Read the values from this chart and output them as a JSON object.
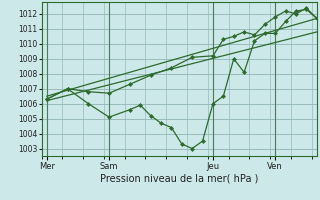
{
  "xlabel": "Pression niveau de la mer( hPa )",
  "bg_color": "#cce8e8",
  "grid_color": "#99bbbb",
  "line_color": "#2d6a2d",
  "vline_color": "#4a7a5a",
  "ylim": [
    1002.5,
    1012.8
  ],
  "yticks": [
    1003,
    1004,
    1005,
    1006,
    1007,
    1008,
    1009,
    1010,
    1011,
    1012
  ],
  "xtick_labels": [
    "Mer",
    "Sam",
    "Jeu",
    "Ven"
  ],
  "xtick_positions": [
    0,
    24,
    64,
    88
  ],
  "xlim": [
    -2,
    104
  ],
  "series1_upper": {
    "x": [
      0,
      8,
      16,
      24,
      32,
      40,
      48,
      56,
      64,
      68,
      72,
      76,
      80,
      84,
      88,
      92,
      96,
      100,
      104
    ],
    "y": [
      1006.3,
      1007.0,
      1006.8,
      1006.7,
      1007.3,
      1007.9,
      1008.4,
      1009.1,
      1009.2,
      1010.3,
      1010.5,
      1010.8,
      1010.6,
      1011.3,
      1011.8,
      1012.2,
      1012.0,
      1012.4,
      1011.7
    ]
  },
  "series2_dip": {
    "x": [
      0,
      8,
      16,
      24,
      32,
      36,
      40,
      44,
      48,
      52,
      56,
      60,
      64,
      68,
      72,
      76,
      80,
      84,
      88,
      92,
      96,
      100,
      104
    ],
    "y": [
      1006.3,
      1007.0,
      1006.0,
      1005.1,
      1005.6,
      1005.9,
      1005.2,
      1004.7,
      1004.4,
      1003.3,
      1003.0,
      1003.5,
      1006.0,
      1006.5,
      1009.0,
      1008.1,
      1010.2,
      1010.7,
      1010.7,
      1011.5,
      1012.2,
      1012.3,
      1011.7
    ]
  },
  "series3_trend": {
    "x": [
      0,
      104
    ],
    "y": [
      1006.5,
      1011.7
    ]
  },
  "series4_trend2": {
    "x": [
      0,
      104
    ],
    "y": [
      1006.2,
      1010.8
    ]
  }
}
